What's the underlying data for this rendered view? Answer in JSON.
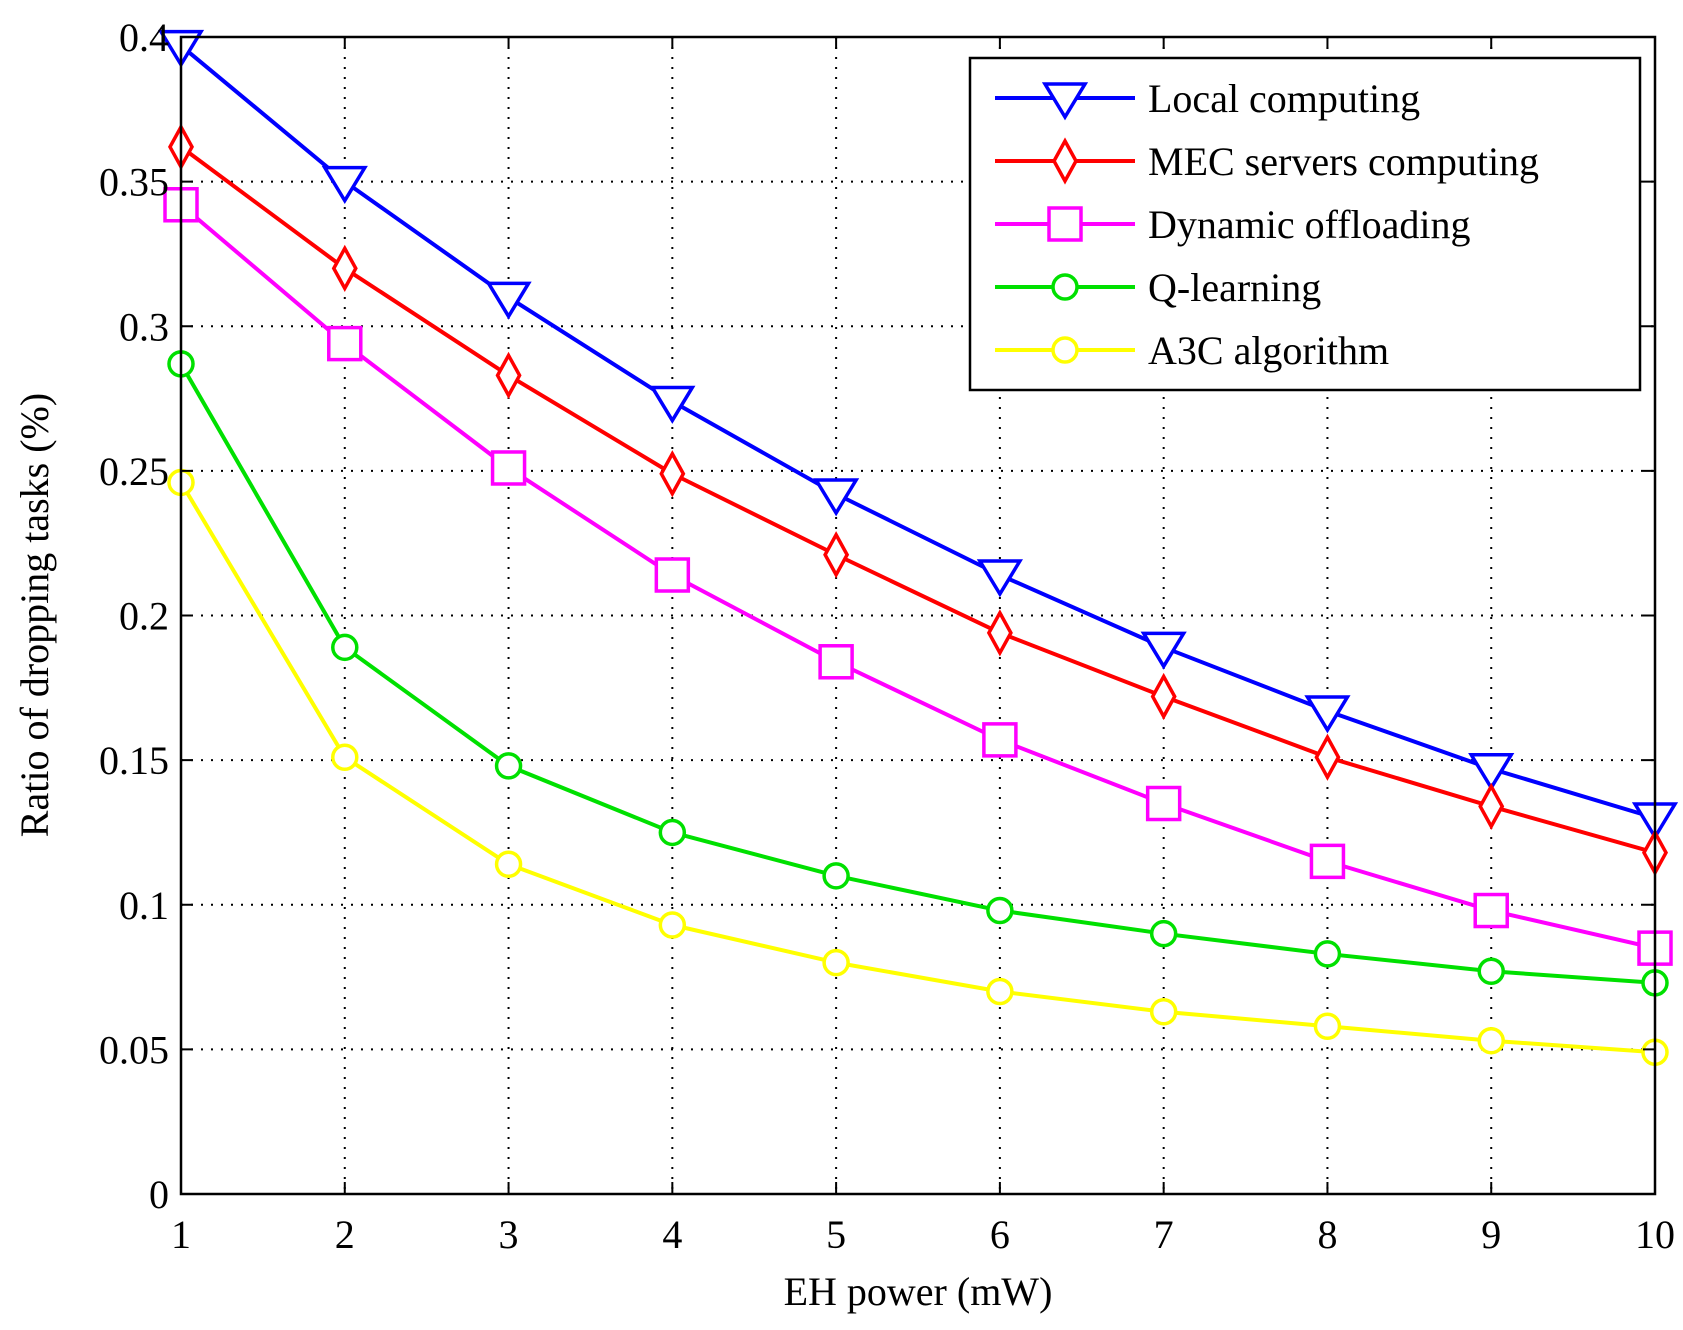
{
  "chart_data": {
    "type": "line",
    "title": "",
    "xlabel": "EH power (mW)",
    "ylabel": "Ratio of  dropping tasks (%)",
    "x": [
      1,
      2,
      3,
      4,
      5,
      6,
      7,
      8,
      9,
      10
    ],
    "xlim": [
      1,
      10
    ],
    "ylim": [
      0,
      0.4
    ],
    "xticks": [
      1,
      2,
      3,
      4,
      5,
      6,
      7,
      8,
      9,
      10
    ],
    "xtick_labels": [
      "1",
      "2",
      "3",
      "4",
      "5",
      "6",
      "7",
      "8",
      "9",
      "10"
    ],
    "yticks": [
      0,
      0.05,
      0.1,
      0.15,
      0.2,
      0.25,
      0.3,
      0.35,
      0.4
    ],
    "ytick_labels": [
      "0",
      "0.05",
      "0.1",
      "0.15",
      "0.2",
      "0.25",
      "0.3",
      "0.35",
      "0.4"
    ],
    "grid": true,
    "legend_position": "top-right",
    "series": [
      {
        "name": "Local computing",
        "color": "#0000ff",
        "marker": "triangle-down",
        "values": [
          0.397,
          0.35,
          0.31,
          0.274,
          0.242,
          0.214,
          0.189,
          0.167,
          0.147,
          0.13
        ]
      },
      {
        "name": "MEC servers computing",
        "color": "#ff0000",
        "marker": "diamond",
        "values": [
          0.362,
          0.32,
          0.283,
          0.249,
          0.221,
          0.194,
          0.172,
          0.151,
          0.134,
          0.118
        ]
      },
      {
        "name": "Dynamic offloading",
        "color": "#ff00ff",
        "marker": "square",
        "values": [
          0.342,
          0.294,
          0.251,
          0.214,
          0.184,
          0.157,
          0.135,
          0.115,
          0.098,
          0.085
        ]
      },
      {
        "name": "Q-learning",
        "color": "#00e000",
        "marker": "circle",
        "values": [
          0.287,
          0.189,
          0.148,
          0.125,
          0.11,
          0.098,
          0.09,
          0.083,
          0.077,
          0.073
        ]
      },
      {
        "name": "A3C algorithm",
        "color": "#ffff00",
        "marker": "circle",
        "values": [
          0.246,
          0.151,
          0.114,
          0.093,
          0.08,
          0.07,
          0.063,
          0.058,
          0.053,
          0.049
        ]
      }
    ]
  }
}
